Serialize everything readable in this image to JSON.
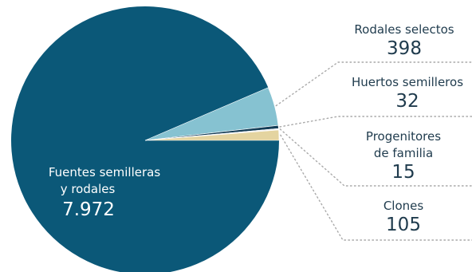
{
  "chart_data": {
    "type": "pie",
    "slices": [
      {
        "label": [
          "Fuentes semilleras",
          "y rodales"
        ],
        "value": 7972,
        "value_label": "7.972",
        "color": "#0b5878"
      },
      {
        "label": [
          "Rodales selectos"
        ],
        "value": 398,
        "value_label": "398",
        "color": "#86c2d1"
      },
      {
        "label": [
          "Huertos semilleros"
        ],
        "value": 32,
        "value_label": "32",
        "color": "#143d57"
      },
      {
        "label": [
          "Progenitores",
          "de familia"
        ],
        "value": 15,
        "value_label": "15",
        "color": "#f2f2f2"
      },
      {
        "label": [
          "Clones"
        ],
        "value": 105,
        "value_label": "105",
        "color": "#e4d4a0"
      }
    ],
    "legend": "right-side labels with dotted leader lines"
  }
}
